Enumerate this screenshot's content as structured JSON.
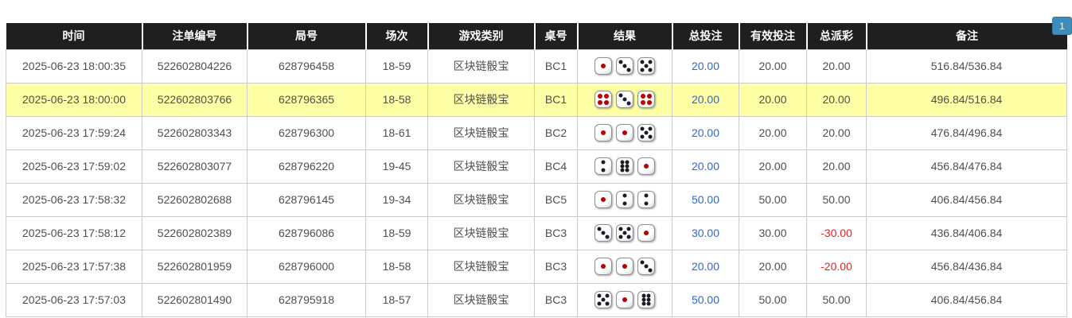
{
  "pagination": {
    "current_page": "1"
  },
  "colors": {
    "header_bg": "#1f1f1f",
    "highlight_row": "#ffffa6",
    "link_blue": "#3366cc",
    "negative_red": "#e62222",
    "pagination_blue": "#3c8dbc",
    "dice_pip_black": "#1c1c28",
    "dice_pip_red": "#bb0000"
  },
  "table": {
    "headers": [
      "时间",
      "注单编号",
      "局号",
      "场次",
      "游戏类别",
      "桌号",
      "结果",
      "总投注",
      "有效投注",
      "总派彩",
      "备注"
    ],
    "rows": [
      {
        "time": "2025-06-23 18:00:35",
        "bet_id": "522602804226",
        "round_id": "628796458",
        "session": "18-59",
        "game_type": "区块链骰宝",
        "table_id": "BC1",
        "dice": [
          1,
          3,
          5
        ],
        "total_bet": "20.00",
        "valid_bet": "20.00",
        "payout": "20.00",
        "remark": "516.84/536.84",
        "highlighted": false
      },
      {
        "time": "2025-06-23 18:00:00",
        "bet_id": "522602803766",
        "round_id": "628796365",
        "session": "18-58",
        "game_type": "区块链骰宝",
        "table_id": "BC1",
        "dice": [
          4,
          3,
          4
        ],
        "total_bet": "20.00",
        "valid_bet": "20.00",
        "payout": "20.00",
        "remark": "496.84/516.84",
        "highlighted": true
      },
      {
        "time": "2025-06-23 17:59:24",
        "bet_id": "522602803343",
        "round_id": "628796300",
        "session": "18-61",
        "game_type": "区块链骰宝",
        "table_id": "BC2",
        "dice": [
          1,
          1,
          5
        ],
        "total_bet": "20.00",
        "valid_bet": "20.00",
        "payout": "20.00",
        "remark": "476.84/496.84",
        "highlighted": false
      },
      {
        "time": "2025-06-23 17:59:02",
        "bet_id": "522602803077",
        "round_id": "628796220",
        "session": "19-45",
        "game_type": "区块链骰宝",
        "table_id": "BC4",
        "dice": [
          2,
          6,
          1
        ],
        "total_bet": "20.00",
        "valid_bet": "20.00",
        "payout": "20.00",
        "remark": "456.84/476.84",
        "highlighted": false
      },
      {
        "time": "2025-06-23 17:58:32",
        "bet_id": "522602802688",
        "round_id": "628796145",
        "session": "19-34",
        "game_type": "区块链骰宝",
        "table_id": "BC5",
        "dice": [
          1,
          2,
          2
        ],
        "total_bet": "50.00",
        "valid_bet": "50.00",
        "payout": "50.00",
        "remark": "406.84/456.84",
        "highlighted": false
      },
      {
        "time": "2025-06-23 17:58:12",
        "bet_id": "522602802389",
        "round_id": "628796086",
        "session": "18-59",
        "game_type": "区块链骰宝",
        "table_id": "BC3",
        "dice": [
          3,
          5,
          1
        ],
        "total_bet": "30.00",
        "valid_bet": "30.00",
        "payout": "-30.00",
        "remark": "436.84/406.84",
        "highlighted": false
      },
      {
        "time": "2025-06-23 17:57:38",
        "bet_id": "522602801959",
        "round_id": "628796000",
        "session": "18-58",
        "game_type": "区块链骰宝",
        "table_id": "BC3",
        "dice": [
          1,
          1,
          3
        ],
        "total_bet": "20.00",
        "valid_bet": "20.00",
        "payout": "-20.00",
        "remark": "456.84/436.84",
        "highlighted": false
      },
      {
        "time": "2025-06-23 17:57:03",
        "bet_id": "522602801490",
        "round_id": "628795918",
        "session": "18-57",
        "game_type": "区块链骰宝",
        "table_id": "BC3",
        "dice": [
          5,
          1,
          6
        ],
        "total_bet": "50.00",
        "valid_bet": "50.00",
        "payout": "50.00",
        "remark": "406.84/456.84",
        "highlighted": false
      }
    ]
  }
}
